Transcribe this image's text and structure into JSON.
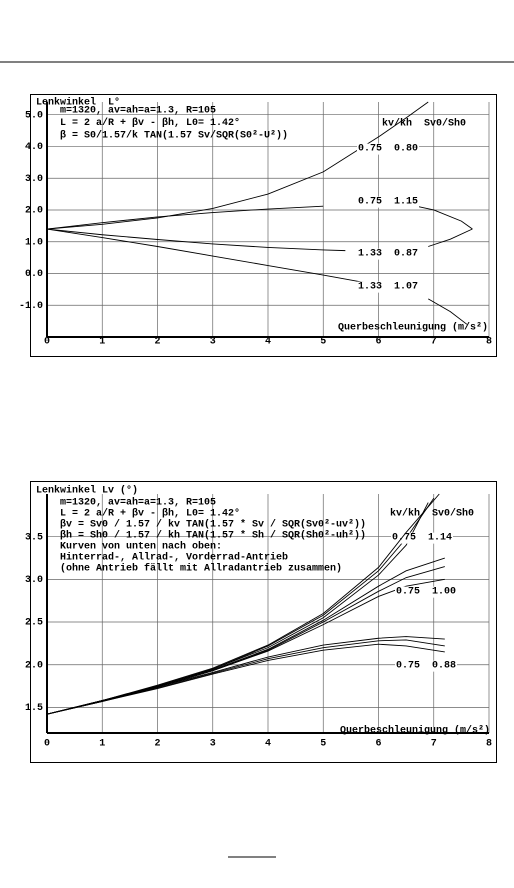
{
  "chart_data": [
    {
      "type": "line",
      "title": "Lenkwinkel  L°",
      "annotations": [
        "m=1320, av=ah=a=1.3, R=105",
        "L = 2 a/R + βv - βh, L0= 1.42°",
        "β = S0/1.57/k TAN(1.57 Sv/SQR(S0²-U²))"
      ],
      "legend_header": "kv/kh  Sv0/Sh0",
      "x_label": "Querbeschleunigung (m/s²)",
      "xlim": [
        0,
        8
      ],
      "xticks": [
        0,
        1,
        2,
        3,
        4,
        5,
        6,
        7,
        8
      ],
      "ylim": [
        -2,
        5.4
      ],
      "yticks": [
        {
          "value": -1,
          "label": "-1.0"
        },
        {
          "value": 0,
          "label": "0.0"
        },
        {
          "value": 1,
          "label": "1.0"
        },
        {
          "value": 2,
          "label": "2.0"
        },
        {
          "value": 3,
          "label": "3.0"
        },
        {
          "value": 4,
          "label": "4.0"
        },
        {
          "value": 5,
          "label": "5.0"
        }
      ],
      "grid": true,
      "series": [
        {
          "name": "0.75  0.80",
          "color": "#000000",
          "x": [
            0,
            1,
            2,
            3,
            4,
            5,
            6,
            6.5,
            6.9
          ],
          "values": [
            1.4,
            1.55,
            1.75,
            2.05,
            2.5,
            3.2,
            4.3,
            4.9,
            5.4
          ]
        },
        {
          "name": "0.75  1.15",
          "color": "#000000",
          "x": [
            0,
            1,
            2,
            3,
            4,
            5,
            5.4,
            6.6,
            7,
            7.5,
            7.7
          ],
          "values": [
            1.4,
            1.6,
            1.78,
            1.92,
            2.03,
            2.12,
            null,
            2.15,
            2.0,
            1.65,
            1.4
          ]
        },
        {
          "name": "1.33  0.87",
          "color": "#000000",
          "x": [
            0,
            1,
            2,
            3,
            4,
            5,
            5.4,
            6,
            6.9,
            7.3,
            7.7
          ],
          "values": [
            1.4,
            1.22,
            1.07,
            0.93,
            0.82,
            0.74,
            0.72,
            null,
            0.85,
            1.08,
            1.4
          ]
        },
        {
          "name": "1.33  1.07",
          "color": "#000000",
          "x": [
            0,
            1,
            2,
            3,
            4,
            5,
            5.8,
            6.5,
            6.9,
            7.3,
            7.6
          ],
          "values": [
            1.4,
            1.13,
            0.85,
            0.55,
            0.25,
            -0.05,
            -0.3,
            null,
            -0.8,
            -1.2,
            -1.6
          ]
        }
      ]
    },
    {
      "type": "line",
      "title": "Lenkwinkel Lv (°)",
      "annotations": [
        "m=1320, av=ah=a=1.3, R=105",
        "L = 2 a/R + βv - βh, L0= 1.42°",
        "βv = Sv0 / 1.57 / kv TAN(1.57 * Sv / SQR(Sv0²-uv²))",
        "βh = Sh0 / 1.57 / kh TAN(1.57 * Sh / SQR(Sh0²-uh²))",
        "Kurven von unten nach oben:",
        "Hinterrad-, Allrad-, Vorderrad-Antrieb",
        "(ohne Antrieb fällt mit Allradantrieb zusammen)"
      ],
      "legend_header": "kv/kh  Sv0/Sh0",
      "x_label": "Querbeschleunigung (m/s²)",
      "xlim": [
        0,
        8
      ],
      "xticks": [
        0,
        1,
        2,
        3,
        4,
        5,
        6,
        7,
        8
      ],
      "ylim": [
        1.2,
        4.0
      ],
      "yticks": [
        1.5,
        {
          "value": 2,
          "label": "2.0"
        },
        2.5,
        {
          "value": 3,
          "label": "3.0"
        },
        3.5
      ],
      "grid": true,
      "series": [
        {
          "color": "#000000",
          "x": [
            0,
            1,
            2,
            3,
            4,
            5,
            6,
            6.5,
            6.9
          ],
          "values": [
            1.42,
            1.58,
            1.75,
            1.95,
            2.2,
            2.55,
            3.05,
            3.4,
            3.9
          ]
        },
        {
          "name": "0.75  1.14",
          "color": "#000000",
          "x": [
            0,
            1,
            2,
            3,
            4,
            5,
            6,
            6.5,
            7
          ],
          "values": [
            1.42,
            1.58,
            1.75,
            1.95,
            2.22,
            2.58,
            3.1,
            3.48,
            3.95
          ]
        },
        {
          "color": "#000000",
          "x": [
            0,
            1,
            2,
            3,
            4,
            5,
            6,
            6.5,
            7.1
          ],
          "values": [
            1.42,
            1.58,
            1.76,
            1.96,
            2.23,
            2.6,
            3.14,
            3.55,
            4.0
          ]
        },
        {
          "color": "#000000",
          "x": [
            0,
            1,
            2,
            3,
            4,
            5,
            6,
            6.5,
            7.2
          ],
          "values": [
            1.42,
            1.58,
            1.74,
            1.93,
            2.16,
            2.47,
            2.8,
            2.92,
            3.0
          ]
        },
        {
          "name": "0.75  1.00",
          "color": "#000000",
          "x": [
            0,
            1,
            2,
            3,
            4,
            5,
            6,
            6.5,
            7.2
          ],
          "values": [
            1.42,
            1.58,
            1.74,
            1.93,
            2.17,
            2.5,
            2.86,
            3.02,
            3.15
          ]
        },
        {
          "color": "#000000",
          "x": [
            0,
            1,
            2,
            3,
            4,
            5,
            6,
            6.5,
            7.2
          ],
          "values": [
            1.42,
            1.58,
            1.75,
            1.94,
            2.18,
            2.52,
            2.92,
            3.1,
            3.25
          ]
        },
        {
          "color": "#000000",
          "x": [
            0,
            1,
            2,
            3,
            4,
            5,
            6,
            6.5,
            7.2
          ],
          "values": [
            1.42,
            1.57,
            1.72,
            1.89,
            2.05,
            2.17,
            2.24,
            2.22,
            2.15
          ]
        },
        {
          "name": "0.75  0.88",
          "color": "#000000",
          "x": [
            0,
            1,
            2,
            3,
            4,
            5,
            6,
            6.5,
            7.2
          ],
          "values": [
            1.42,
            1.57,
            1.73,
            1.9,
            2.07,
            2.2,
            2.28,
            2.29,
            2.22
          ]
        },
        {
          "color": "#000000",
          "x": [
            0,
            1,
            2,
            3,
            4,
            5,
            6,
            6.5,
            7.2
          ],
          "values": [
            1.42,
            1.57,
            1.74,
            1.91,
            2.09,
            2.23,
            2.31,
            2.33,
            2.3
          ]
        }
      ]
    }
  ]
}
